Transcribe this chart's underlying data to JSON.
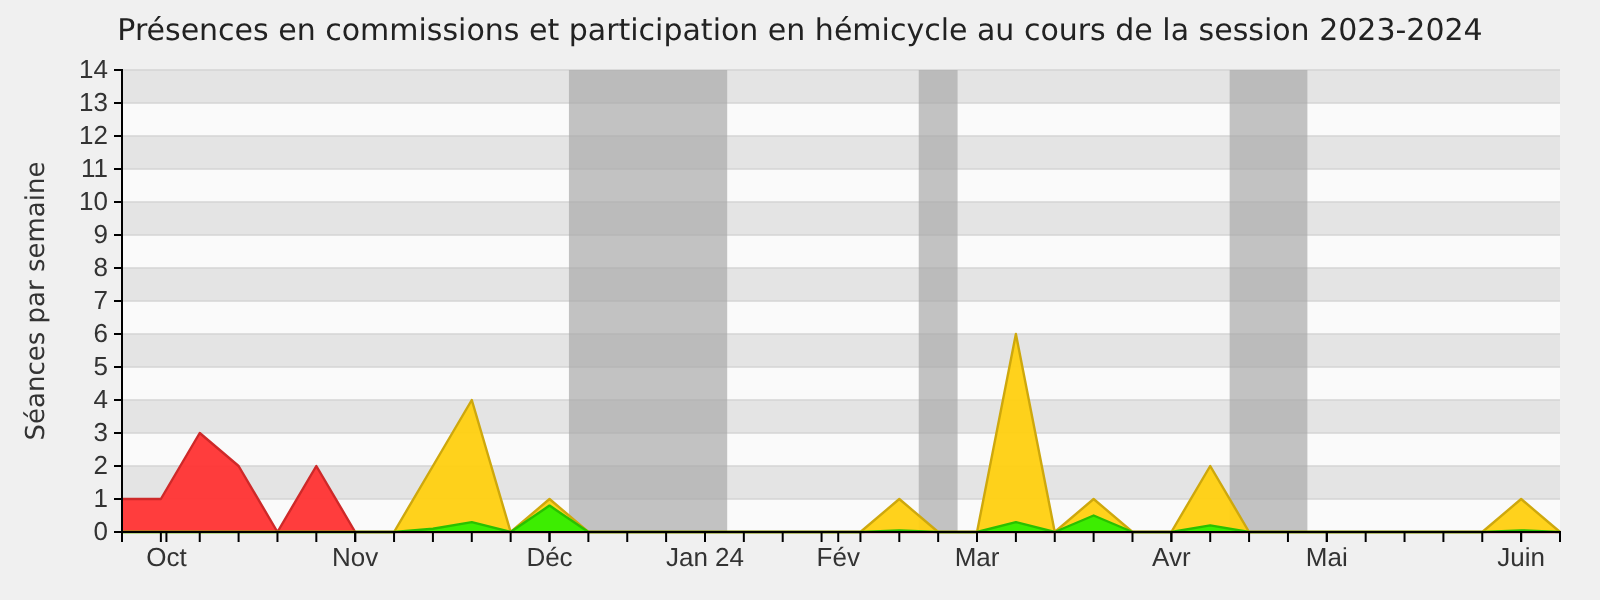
{
  "chart_data": {
    "type": "area",
    "title": "Présences en commissions et participation en hémicycle au cours de la session 2023-2024",
    "ylabel": "Séances par semaine",
    "x": [
      "2023-10-02",
      "2023-10-09",
      "2023-10-16",
      "2023-10-23",
      "2023-10-30",
      "2023-11-06",
      "2023-11-13",
      "2023-11-20",
      "2023-11-27",
      "2023-12-04",
      "2023-12-11",
      "2023-12-18",
      "2023-12-25",
      "2024-01-01",
      "2024-01-08",
      "2024-01-15",
      "2024-01-22",
      "2024-01-29",
      "2024-02-05",
      "2024-02-12",
      "2024-02-19",
      "2024-02-26",
      "2024-03-04",
      "2024-03-11",
      "2024-03-18",
      "2024-03-25",
      "2024-04-01",
      "2024-04-08",
      "2024-04-15",
      "2024-04-22",
      "2024-04-29",
      "2024-05-06",
      "2024-05-13",
      "2024-05-20",
      "2024-05-27",
      "2024-06-03",
      "2024-06-10",
      "2024-06-17"
    ],
    "series": [
      {
        "color": "#ff3333",
        "values": [
          1,
          1,
          3,
          2,
          0,
          2,
          0,
          0,
          0,
          0,
          0,
          0,
          0,
          0,
          0,
          0,
          0,
          0,
          0,
          0,
          0,
          0,
          0,
          0,
          0,
          0,
          0,
          0,
          0,
          0,
          0,
          0,
          0,
          0,
          0,
          0,
          0,
          0
        ]
      },
      {
        "color": "#ffd010",
        "values": [
          0,
          0,
          0,
          0,
          0,
          0,
          0,
          0,
          2,
          4,
          0,
          1,
          0,
          0,
          0,
          0,
          0,
          0,
          0,
          0,
          1,
          0,
          0,
          6,
          0,
          1,
          0,
          0,
          2,
          0,
          0,
          0,
          0,
          0,
          0,
          0,
          1,
          0
        ]
      },
      {
        "color": "#33ee00",
        "values": [
          0,
          0,
          0,
          0,
          0,
          0,
          0,
          0,
          0.1,
          0.3,
          0,
          0.8,
          0,
          0,
          0,
          0,
          0,
          0,
          0,
          0,
          0.05,
          0,
          0,
          0.3,
          0,
          0.5,
          0,
          0,
          0.2,
          0,
          0,
          0,
          0,
          0,
          0,
          0,
          0.05,
          0
        ]
      }
    ],
    "xlim": [
      "2023-10-02",
      "2024-06-17"
    ],
    "xticks": [
      {
        "value": "2023-10-10",
        "label": "Oct"
      },
      {
        "value": "2023-11-13",
        "label": "Nov"
      },
      {
        "value": "2023-12-18",
        "label": "Déc"
      },
      {
        "value": "2024-01-15",
        "label": "Jan 24"
      },
      {
        "value": "2024-02-08",
        "label": "Fév"
      },
      {
        "value": "2024-03-04",
        "label": "Mar"
      },
      {
        "value": "2024-04-08",
        "label": "Avr"
      },
      {
        "value": "2024-05-06",
        "label": "Mai"
      },
      {
        "value": "2024-06-10",
        "label": "Juin"
      },
      {
        "value": "2023-10-02",
        "label": null
      },
      {
        "value": "2023-10-09",
        "label": null
      },
      {
        "value": "2023-10-16",
        "label": null
      },
      {
        "value": "2023-10-23",
        "label": null
      },
      {
        "value": "2023-10-30",
        "label": null
      },
      {
        "value": "2023-11-06",
        "label": null
      },
      {
        "value": "2023-11-13",
        "label": null
      },
      {
        "value": "2023-11-20",
        "label": null
      },
      {
        "value": "2023-11-27",
        "label": null
      },
      {
        "value": "2023-12-04",
        "label": null
      },
      {
        "value": "2023-12-11",
        "label": null
      },
      {
        "value": "2023-12-18",
        "label": null
      },
      {
        "value": "2023-12-25",
        "label": null
      },
      {
        "value": "2024-01-01",
        "label": null
      },
      {
        "value": "2024-01-08",
        "label": null
      },
      {
        "value": "2024-01-15",
        "label": null
      },
      {
        "value": "2024-01-22",
        "label": null
      },
      {
        "value": "2024-01-29",
        "label": null
      },
      {
        "value": "2024-02-05",
        "label": null
      },
      {
        "value": "2024-02-12",
        "label": null
      },
      {
        "value": "2024-02-19",
        "label": null
      },
      {
        "value": "2024-02-26",
        "label": null
      },
      {
        "value": "2024-03-04",
        "label": null
      },
      {
        "value": "2024-03-11",
        "label": null
      },
      {
        "value": "2024-03-18",
        "label": null
      },
      {
        "value": "2024-03-25",
        "label": null
      },
      {
        "value": "2024-04-01",
        "label": null
      },
      {
        "value": "2024-04-08",
        "label": null
      },
      {
        "value": "2024-04-15",
        "label": null
      },
      {
        "value": "2024-04-22",
        "label": null
      },
      {
        "value": "2024-04-29",
        "label": null
      },
      {
        "value": "2024-05-06",
        "label": null
      },
      {
        "value": "2024-05-13",
        "label": null
      },
      {
        "value": "2024-05-20",
        "label": null
      },
      {
        "value": "2024-05-27",
        "label": null
      },
      {
        "value": "2024-06-03",
        "label": null
      },
      {
        "value": "2024-06-10",
        "label": null
      },
      {
        "value": "2024-06-17",
        "label": null
      }
    ],
    "ylim": [
      0,
      14
    ],
    "yticks": [
      0,
      1,
      2,
      3,
      4,
      5,
      6,
      7,
      8,
      9,
      10,
      11,
      12,
      13,
      14
    ],
    "grid": "y",
    "bands": [
      {
        "axis": "x",
        "from": "2023-12-21T12:00",
        "to": "2024-01-19",
        "color": "#aaaaaa"
      },
      {
        "axis": "x",
        "from": "2024-02-22T12:00",
        "to": "2024-02-29T12:00",
        "color": "#aaaaaa"
      },
      {
        "axis": "x",
        "from": "2024-04-18T12:00",
        "to": "2024-05-02T12:00",
        "color": "#aaaaaa"
      }
    ]
  }
}
